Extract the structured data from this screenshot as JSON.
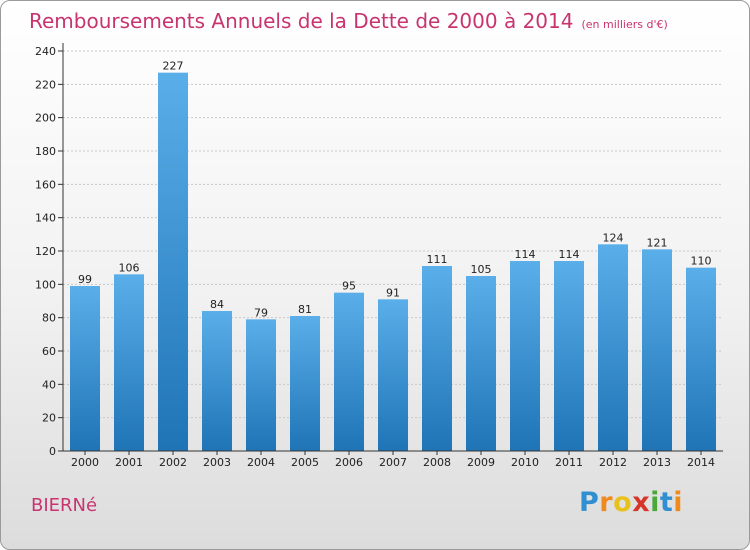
{
  "header": {
    "title": "Remboursements Annuels de la Dette de 2000 à 2014",
    "subtitle": "(en milliers d'€)"
  },
  "footer": {
    "place": "BIERNé",
    "logo_letters": [
      {
        "ch": "P",
        "color": "#2f8fd0"
      },
      {
        "ch": "r",
        "color": "#f08a1c"
      },
      {
        "ch": "o",
        "color": "#e8c21a"
      },
      {
        "ch": "x",
        "color": "#d8352a"
      },
      {
        "ch": "i",
        "color": "#4aa83a"
      },
      {
        "ch": "t",
        "color": "#2f8fd0"
      },
      {
        "ch": "i",
        "color": "#f08a1c"
      }
    ]
  },
  "chart_data": {
    "type": "bar",
    "title": "Remboursements Annuels de la Dette de 2000 à 2014",
    "subtitle": "(en milliers d'€)",
    "categories": [
      "2000",
      "2001",
      "2002",
      "2003",
      "2004",
      "2005",
      "2006",
      "2007",
      "2008",
      "2009",
      "2010",
      "2011",
      "2012",
      "2013",
      "2014"
    ],
    "values": [
      99,
      106,
      227,
      84,
      79,
      81,
      95,
      91,
      111,
      105,
      114,
      114,
      124,
      121,
      110
    ],
    "ylim": [
      0,
      240
    ],
    "yticks": [
      0,
      20,
      40,
      60,
      80,
      100,
      120,
      140,
      160,
      180,
      200,
      220,
      240
    ],
    "grid": true,
    "data_labels": true,
    "colors": {
      "bar_top": "#5aaee9",
      "bar_bottom": "#1f74b6",
      "grid": "#c8c8c8",
      "axis": "#333333"
    }
  }
}
